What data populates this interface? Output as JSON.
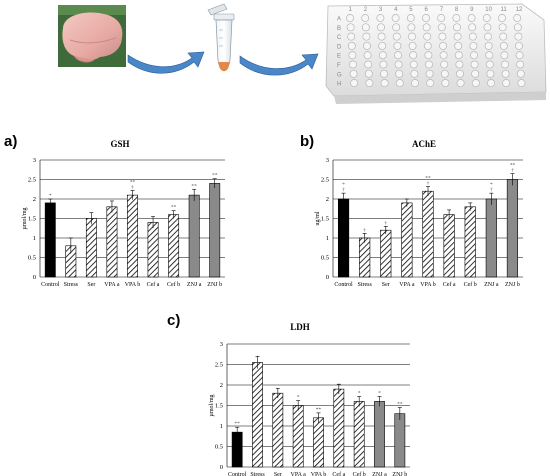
{
  "workflow": {
    "steps": [
      "brain-tissue-image",
      "microcentrifuge-tube-image",
      "96-well-plate-image"
    ],
    "plate_rows": [
      "A",
      "B",
      "C",
      "D",
      "E",
      "F",
      "G",
      "H"
    ],
    "plate_columns": [
      "1",
      "2",
      "3",
      "4",
      "5",
      "6",
      "7",
      "8",
      "9",
      "10",
      "11",
      "12"
    ]
  },
  "colors": {
    "control_bar": "#000000",
    "striped_bar": "#ffffff",
    "znj_bar": "#8a8a8a",
    "arrow": "#4a86c8"
  },
  "chart_data": [
    {
      "panel": "a)",
      "type": "bar",
      "title": "GSH",
      "ylabel": "µmol/mg",
      "xlabel": "",
      "ylim": [
        0,
        3
      ],
      "yticks": [
        "0",
        "0.5",
        "1",
        "1.5",
        "2",
        "2.5",
        "3"
      ],
      "grid": true,
      "categories": [
        "Control",
        "Stress",
        "Ser",
        "VPA a",
        "VPA b",
        "Cef a",
        "Cef b",
        "ZNJ a",
        "ZNJ b"
      ],
      "values": [
        1.9,
        0.8,
        1.5,
        1.8,
        2.1,
        1.4,
        1.6,
        2.1,
        2.4
      ],
      "errors": [
        0.1,
        0.2,
        0.15,
        0.15,
        0.12,
        0.15,
        0.1,
        0.15,
        0.12
      ],
      "styles": [
        "solid",
        "hatched",
        "hatched",
        "hatched",
        "hatched",
        "hatched",
        "hatched",
        "gray",
        "gray"
      ],
      "significance": [
        "*",
        "",
        "",
        "",
        "**\n†",
        "",
        "**",
        "**",
        "**"
      ]
    },
    {
      "panel": "b)",
      "type": "bar",
      "title": "AChE",
      "ylabel": "ug/ml",
      "xlabel": "",
      "ylim": [
        0,
        3
      ],
      "yticks": [
        "0",
        "0.5",
        "1",
        "1.5",
        "2",
        "2.5",
        "3"
      ],
      "grid": true,
      "categories": [
        "Control",
        "Stress",
        "Ser",
        "VPA a",
        "VPA b",
        "Cef a",
        "Cef b",
        "ZNJ a",
        "ZNJ b"
      ],
      "values": [
        2.0,
        1.0,
        1.2,
        1.9,
        2.2,
        1.6,
        1.8,
        2.0,
        2.5
      ],
      "errors": [
        0.15,
        0.12,
        0.1,
        0.1,
        0.12,
        0.12,
        0.1,
        0.15,
        0.15
      ],
      "styles": [
        "solid",
        "hatched",
        "hatched",
        "hatched",
        "hatched",
        "hatched",
        "hatched",
        "gray",
        "gray"
      ],
      "significance": [
        "*\n†",
        "†",
        "†",
        "",
        "**\n†",
        "",
        "",
        "*\n†",
        "**\n†"
      ]
    },
    {
      "panel": "c)",
      "type": "bar",
      "title": "LDH",
      "ylabel": "µmol/mg",
      "xlabel": "",
      "ylim": [
        0,
        3
      ],
      "yticks": [
        "0",
        "0.5",
        "1",
        "1.5",
        "2",
        "2.5",
        "3"
      ],
      "grid": true,
      "categories": [
        "Control",
        "Stress",
        "Ser",
        "VPA a",
        "VPA b",
        "Cef a",
        "Cef b",
        "ZNJ a",
        "ZNJ b"
      ],
      "values": [
        0.85,
        2.55,
        1.8,
        1.5,
        1.2,
        1.9,
        1.6,
        1.6,
        1.3
      ],
      "errors": [
        0.12,
        0.15,
        0.12,
        0.12,
        0.12,
        0.12,
        0.12,
        0.12,
        0.15
      ],
      "styles": [
        "solid",
        "hatched",
        "hatched",
        "hatched",
        "hatched",
        "hatched",
        "hatched",
        "gray",
        "gray"
      ],
      "significance": [
        "**",
        "",
        "",
        "*",
        "**",
        "",
        "*",
        "*",
        "**"
      ]
    }
  ]
}
